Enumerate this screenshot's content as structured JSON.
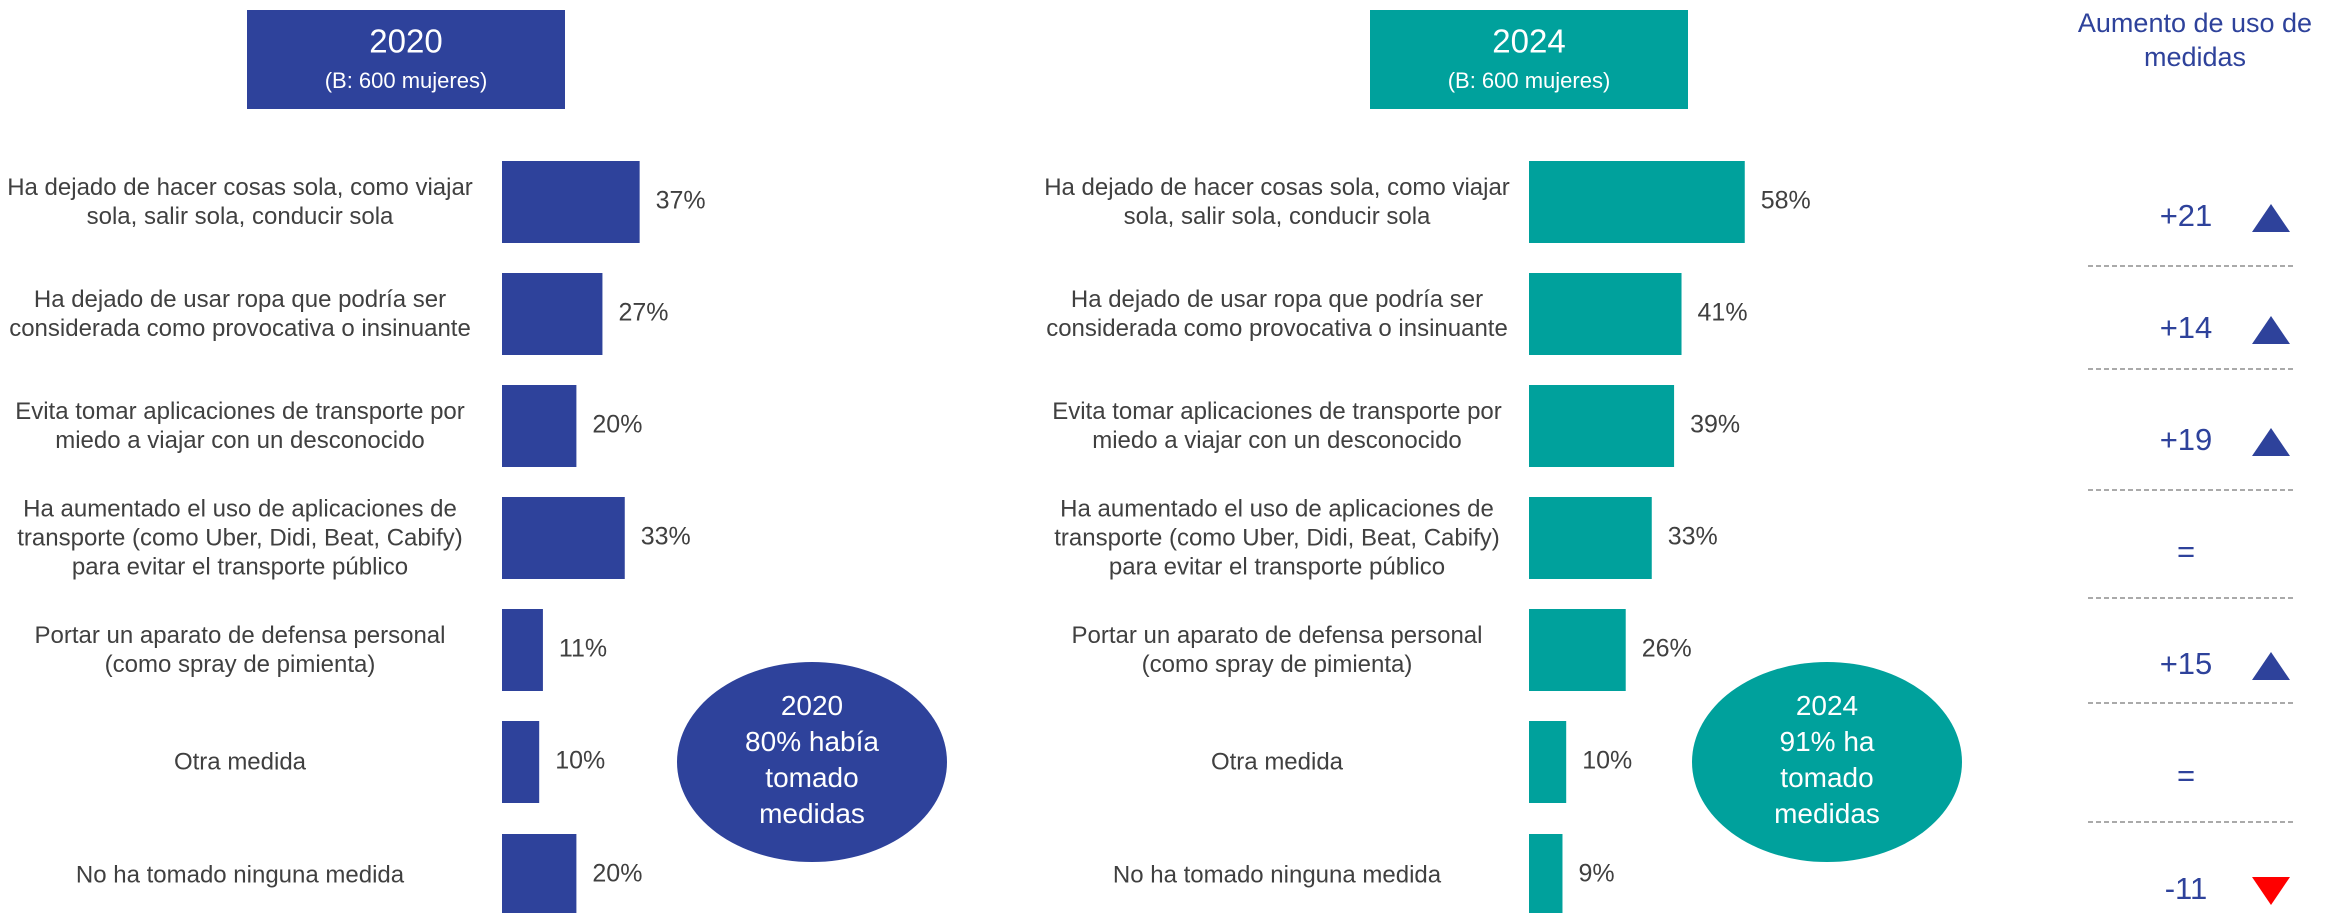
{
  "chart_data": [
    {
      "type": "bar",
      "orientation": "horizontal",
      "title": "2020",
      "subtitle": "(B: 600 mujeres)",
      "color": "#2e429b",
      "categories": [
        "Ha dejado de hacer cosas sola, como viajar sola, salir sola, conducir sola",
        "Ha dejado de usar ropa que podría ser considerada como provocativa o insinuante",
        "Evita tomar aplicaciones de transporte por miedo a viajar con un desconocido",
        "Ha aumentado el uso de aplicaciones de transporte (como Uber, Didi, Beat, Cabify) para evitar el transporte público",
        "Portar un aparato de defensa personal (como spray de pimienta)",
        "Otra medida",
        "No ha tomado ninguna medida"
      ],
      "values": [
        37,
        27,
        20,
        33,
        11,
        10,
        20
      ],
      "value_labels": [
        "37%",
        "27%",
        "20%",
        "33%",
        "11%",
        "10%",
        "20%"
      ],
      "annotation": [
        "2020",
        "80% había",
        "tomado",
        "medidas"
      ]
    },
    {
      "type": "bar",
      "orientation": "horizontal",
      "title": "2024",
      "subtitle": "(B: 600 mujeres)",
      "color": "#00a19c",
      "categories": [
        "Ha dejado de hacer cosas sola, como viajar sola, salir sola, conducir sola",
        "Ha dejado de usar ropa que podría ser considerada como provocativa o insinuante",
        "Evita tomar aplicaciones de transporte por miedo a viajar con un desconocido",
        "Ha aumentado el uso de aplicaciones de transporte (como Uber, Didi, Beat, Cabify) para evitar el transporte público",
        "Portar un aparato de defensa personal (como spray de pimienta)",
        "Otra medida",
        "No ha tomado ninguna medida"
      ],
      "values": [
        58,
        41,
        39,
        33,
        26,
        10,
        9
      ],
      "value_labels": [
        "58%",
        "41%",
        "39%",
        "33%",
        "26%",
        "10%",
        "9%"
      ],
      "annotation": [
        "2024",
        "91% ha",
        "tomado",
        "medidas"
      ]
    }
  ],
  "change": {
    "title": "Aumento de uso de medidas",
    "values": [
      21,
      14,
      19,
      0,
      15,
      0,
      -11
    ],
    "value_labels": [
      "+21",
      "+14",
      "+19",
      "=",
      "+15",
      "=",
      "-11"
    ],
    "up_color": "#2e429b",
    "down_color": "#ff0000"
  }
}
